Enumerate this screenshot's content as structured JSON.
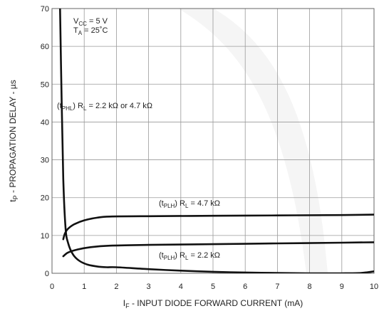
{
  "chart_data": {
    "type": "line",
    "title": "",
    "xlabel_main": "I",
    "xlabel_sub": "F",
    "xlabel_rest": " - INPUT DIODE FORWARD CURRENT (mA)",
    "ylabel_main": "t",
    "ylabel_sub": "P",
    "ylabel_rest": " - PROPAGATION DELAY - µs",
    "xlim": [
      0,
      10
    ],
    "ylim": [
      0,
      70
    ],
    "xticks": [
      "0",
      "1",
      "2",
      "3",
      "4",
      "5",
      "6",
      "7",
      "8",
      "9",
      "10"
    ],
    "yticks": [
      "0",
      "10",
      "20",
      "30",
      "40",
      "50",
      "60",
      "70"
    ],
    "grid": true,
    "conditions": {
      "vcc_main": "V",
      "vcc_sub": "CC",
      "vcc_rest": " = 5 V",
      "ta_main": "T",
      "ta_sub": "A",
      "ta_rest": " = 25˚C"
    },
    "series": [
      {
        "label_pre": "(t",
        "label_sub": "PHL",
        "label_mid": ") R",
        "label_sub2": "L",
        "label_post": " = 2.2 kΩ or 4.7 kΩ",
        "x": [
          0.25,
          0.3,
          0.35,
          0.42,
          0.5,
          0.65,
          0.85,
          1.1,
          1.4,
          1.7,
          2.0,
          3.0,
          4.0,
          5.0,
          6.0,
          7.0,
          8.0,
          9.0,
          9.6,
          10.0
        ],
        "y": [
          70,
          45,
          25,
          12,
          8,
          5,
          3.3,
          2.3,
          1.8,
          1.6,
          1.6,
          1.1,
          0.7,
          0.4,
          0.2,
          0.1,
          0,
          0,
          0.1,
          0.5
        ]
      },
      {
        "label_pre": "(t",
        "label_sub": "PLH",
        "label_mid": ") R",
        "label_sub2": "L",
        "label_post": " = 4.7 kΩ",
        "x": [
          0.35,
          0.4,
          0.5,
          0.7,
          1.0,
          1.4,
          1.8,
          3.0,
          5.0,
          7.0,
          9.0,
          10.0
        ],
        "y": [
          9,
          10.5,
          11.8,
          13,
          14,
          14.7,
          15,
          15.1,
          15.2,
          15.3,
          15.4,
          15.5
        ]
      },
      {
        "label_pre": "(t",
        "label_sub": "PLH",
        "label_mid": ") R",
        "label_sub2": "L",
        "label_post": " = 2.2 kΩ",
        "x": [
          0.35,
          0.5,
          0.8,
          1.2,
          1.8,
          3.0,
          5.0,
          7.0,
          9.0,
          10.0
        ],
        "y": [
          4.5,
          5.5,
          6.3,
          6.9,
          7.3,
          7.5,
          7.7,
          7.9,
          8.1,
          8.2
        ]
      }
    ]
  }
}
